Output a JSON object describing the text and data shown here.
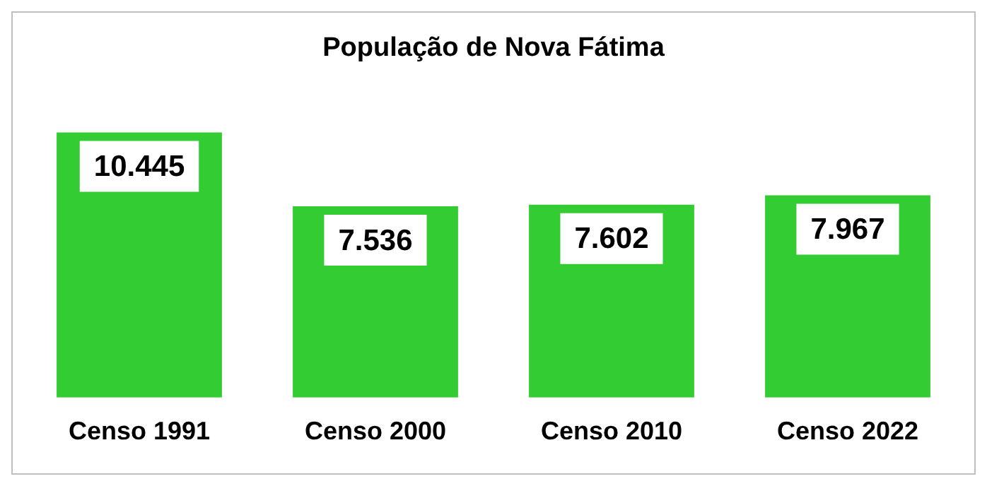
{
  "chart_data": {
    "type": "bar",
    "title": "População de Nova Fátima",
    "categories": [
      "Censo 1991",
      "Censo 2000",
      "Censo 2010",
      "Censo 2022"
    ],
    "values": [
      10445,
      7536,
      7602,
      7967
    ],
    "value_labels": [
      "10.445",
      "7.536",
      "7.602",
      "7.967"
    ],
    "color": "#33cc33",
    "grid": false,
    "legend": false
  }
}
